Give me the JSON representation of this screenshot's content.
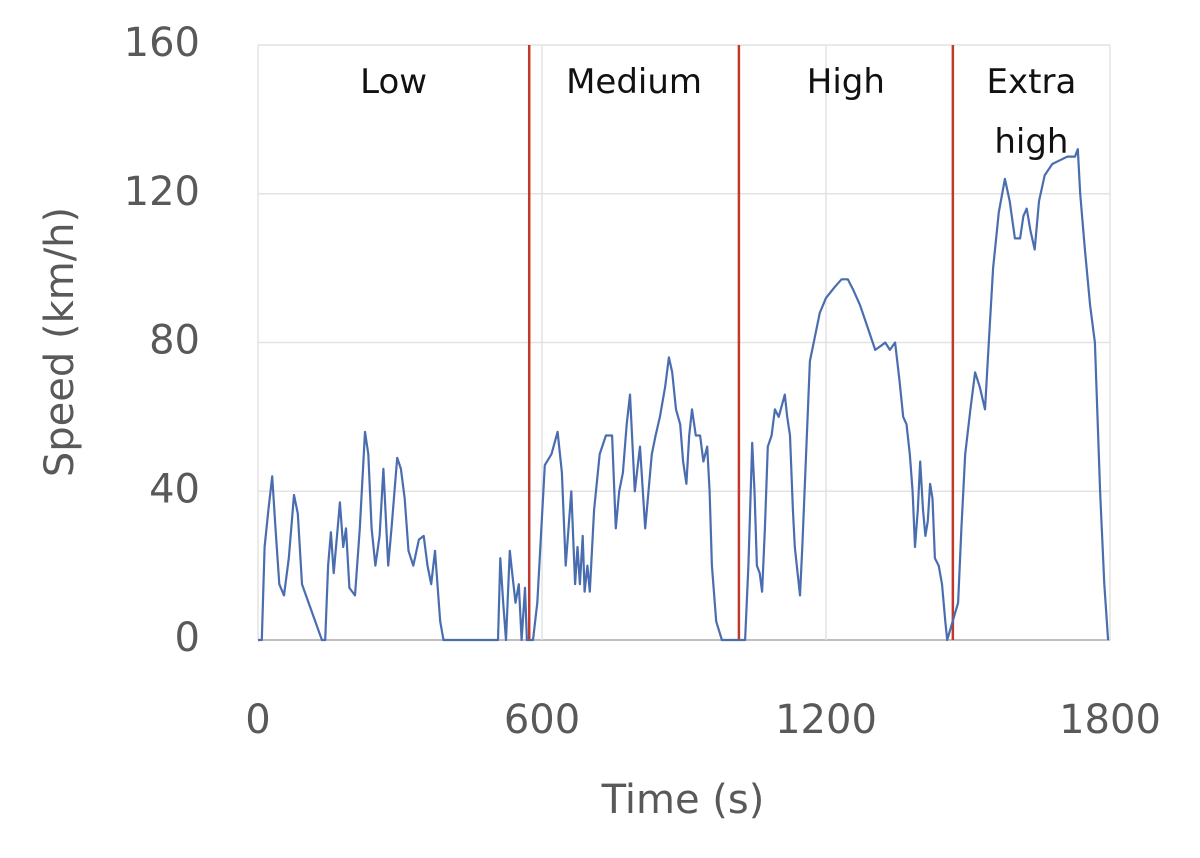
{
  "chart_data": {
    "type": "line",
    "x_label": "Time (s)",
    "y_label": "Speed (km/h)",
    "xlim": [
      0,
      1800
    ],
    "xticks": [
      0,
      600,
      1200,
      1800
    ],
    "ylim": [
      0,
      160
    ],
    "yticks": [
      0,
      40,
      80,
      120,
      160
    ],
    "grid": true,
    "phase_boundaries": [
      573,
      1016,
      1468
    ],
    "phase_boundary_color": "#c0392b",
    "phase_labels": [
      "Low",
      "Medium",
      "High",
      "Extra high"
    ],
    "series": [
      {
        "color": "#4a6db0",
        "x": [
          0,
          8,
          14,
          22,
          30,
          37,
          45,
          55,
          65,
          76,
          84,
          93,
          135,
          142,
          148,
          154,
          160,
          167,
          173,
          180,
          186,
          193,
          205,
          215,
          226,
          233,
          240,
          248,
          257,
          265,
          275,
          282,
          294,
          302,
          310,
          318,
          328,
          340,
          350,
          358,
          366,
          374,
          385,
          392,
          397,
          402,
          410,
          418,
          426,
          507,
          512,
          518,
          524,
          532,
          537,
          544,
          551,
          557,
          564,
          568,
          581,
          590,
          606,
          620,
          633,
          642,
          650,
          662,
          670,
          675,
          680,
          686,
          690,
          696,
          701,
          710,
          722,
          735,
          748,
          756,
          763,
          771,
          779,
          786,
          796,
          807,
          818,
          825,
          832,
          840,
          849,
          860,
          868,
          875,
          883,
          892,
          898,
          905,
          911,
          917,
          925,
          934,
          941,
          949,
          954,
          959,
          968,
          980,
          1029,
          1036,
          1044,
          1049,
          1054,
          1060,
          1065,
          1071,
          1077,
          1085,
          1092,
          1100,
          1113,
          1118,
          1124,
          1130,
          1134,
          1140,
          1145,
          1150,
          1166,
          1187,
          1200,
          1219,
          1233,
          1246,
          1258,
          1272,
          1288,
          1304,
          1315,
          1325,
          1335,
          1346,
          1355,
          1363,
          1370,
          1377,
          1383,
          1388,
          1394,
          1399,
          1405,
          1410,
          1415,
          1420,
          1425,
          1430,
          1438,
          1445,
          1452,
          1456,
          1479,
          1486,
          1494,
          1505,
          1515,
          1525,
          1536,
          1544,
          1553,
          1565,
          1578,
          1588,
          1599,
          1610,
          1617,
          1624,
          1632,
          1641,
          1650,
          1662,
          1678,
          1694,
          1710,
          1726,
          1732,
          1737,
          1747,
          1758,
          1768,
          1779,
          1788,
          1796
        ],
        "values": [
          0,
          0,
          25,
          35,
          44,
          30,
          15,
          12,
          22,
          39,
          34,
          15,
          0,
          0,
          20,
          29,
          18,
          28,
          37,
          25,
          30,
          14,
          12,
          30,
          56,
          50,
          30,
          20,
          28,
          46,
          20,
          30,
          49,
          46,
          38,
          24,
          20,
          27,
          28,
          20,
          15,
          24,
          5,
          0,
          0,
          0,
          0,
          0,
          0,
          0,
          22,
          10,
          0,
          24,
          18,
          10,
          15,
          0,
          14,
          0,
          0,
          10,
          47,
          50,
          56,
          45,
          20,
          40,
          15,
          25,
          15,
          28,
          13,
          20,
          13,
          35,
          50,
          55,
          55,
          30,
          40,
          45,
          58,
          66,
          40,
          52,
          30,
          40,
          50,
          55,
          60,
          68,
          76,
          72,
          62,
          58,
          48,
          42,
          55,
          62,
          55,
          55,
          48,
          52,
          40,
          20,
          5,
          0,
          0,
          20,
          53,
          40,
          20,
          18,
          13,
          30,
          52,
          55,
          62,
          60,
          66,
          60,
          55,
          35,
          25,
          18,
          12,
          25,
          75,
          88,
          92,
          95,
          97,
          97,
          94,
          90,
          84,
          78,
          79,
          80,
          78,
          80,
          70,
          60,
          58,
          50,
          40,
          25,
          35,
          48,
          35,
          28,
          32,
          42,
          38,
          22,
          20,
          15,
          5,
          0,
          10,
          30,
          50,
          62,
          72,
          68,
          62,
          80,
          100,
          115,
          124,
          118,
          108,
          108,
          114,
          116,
          110,
          105,
          118,
          125,
          128,
          129,
          130,
          130,
          132,
          120,
          105,
          90,
          80,
          40,
          15,
          0
        ]
      }
    ]
  }
}
